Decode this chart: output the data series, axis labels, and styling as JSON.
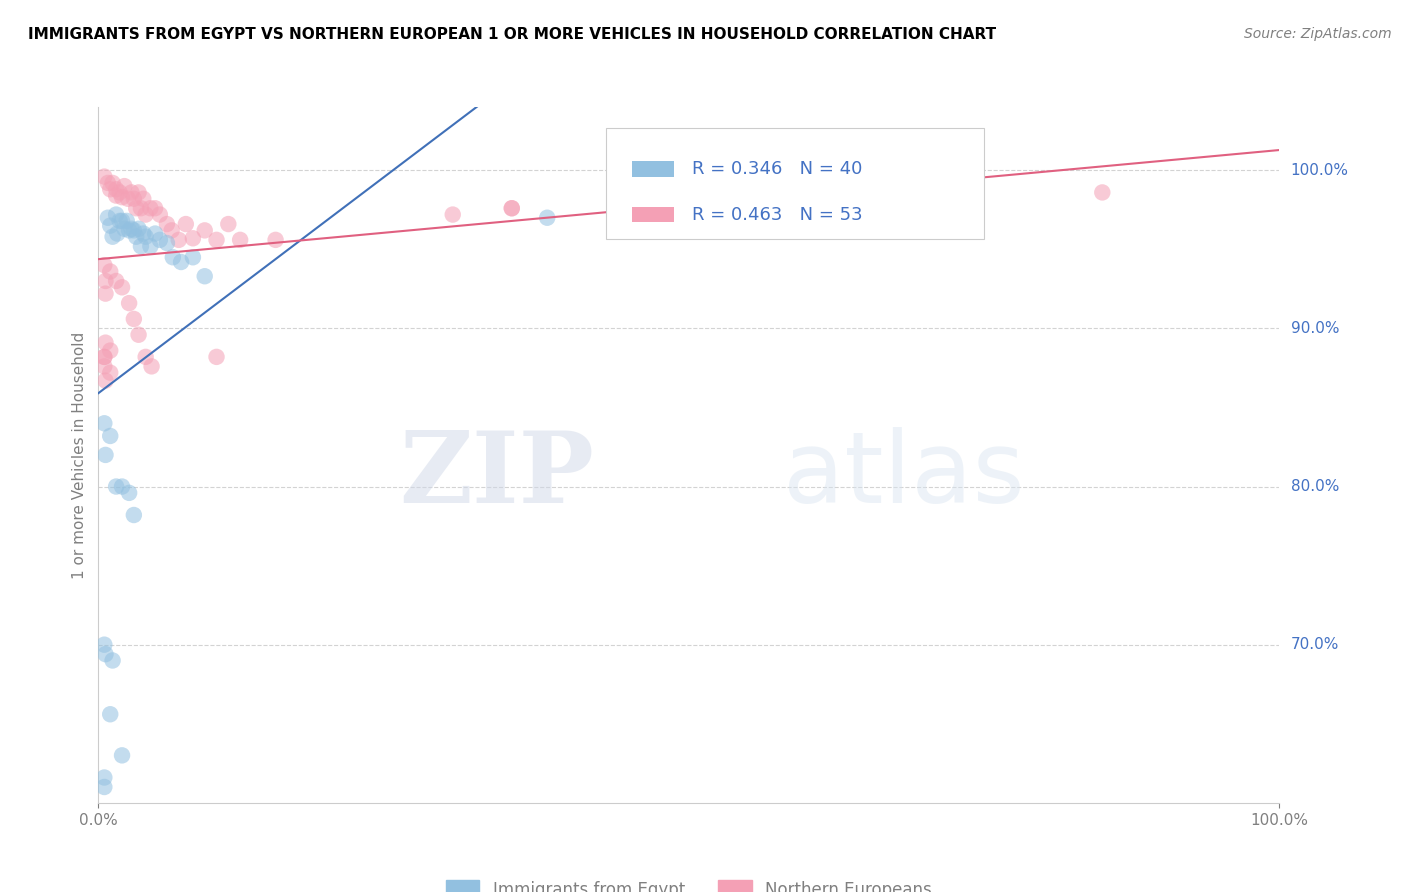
{
  "title": "IMMIGRANTS FROM EGYPT VS NORTHERN EUROPEAN 1 OR MORE VEHICLES IN HOUSEHOLD CORRELATION CHART",
  "source": "Source: ZipAtlas.com",
  "ylabel": "1 or more Vehicles in Household",
  "xlim": [
    0.0,
    1.0
  ],
  "ylim": [
    0.6,
    1.04
  ],
  "yticks": [
    0.7,
    0.8,
    0.9,
    1.0
  ],
  "ytick_labels": [
    "70.0%",
    "80.0%",
    "90.0%",
    "100.0%"
  ],
  "blue_R": 0.346,
  "blue_N": 40,
  "pink_R": 0.463,
  "pink_N": 53,
  "blue_color": "#92c0e0",
  "pink_color": "#f4a0b5",
  "blue_line_color": "#4070b8",
  "pink_line_color": "#e06080",
  "legend_label_blue": "Immigrants from Egypt",
  "legend_label_pink": "Northern Europeans",
  "watermark_zip": "ZIP",
  "watermark_atlas": "atlas",
  "blue_x": [
    0.008,
    0.01,
    0.012,
    0.015,
    0.016,
    0.018,
    0.02,
    0.022,
    0.024,
    0.026,
    0.028,
    0.03,
    0.032,
    0.034,
    0.036,
    0.038,
    0.04,
    0.044,
    0.048,
    0.052,
    0.058,
    0.063,
    0.07,
    0.08,
    0.09,
    0.005,
    0.006,
    0.01,
    0.015,
    0.02,
    0.026,
    0.03,
    0.005,
    0.006,
    0.012,
    0.38,
    0.01,
    0.02,
    0.005,
    0.005
  ],
  "blue_y": [
    0.97,
    0.965,
    0.958,
    0.972,
    0.96,
    0.968,
    0.968,
    0.963,
    0.968,
    0.962,
    0.963,
    0.962,
    0.958,
    0.963,
    0.952,
    0.96,
    0.958,
    0.952,
    0.96,
    0.956,
    0.954,
    0.945,
    0.942,
    0.945,
    0.933,
    0.84,
    0.82,
    0.832,
    0.8,
    0.8,
    0.796,
    0.782,
    0.7,
    0.694,
    0.69,
    0.97,
    0.656,
    0.63,
    0.616,
    0.61
  ],
  "pink_x": [
    0.005,
    0.008,
    0.01,
    0.012,
    0.015,
    0.015,
    0.018,
    0.02,
    0.022,
    0.025,
    0.028,
    0.03,
    0.032,
    0.034,
    0.036,
    0.038,
    0.04,
    0.044,
    0.048,
    0.052,
    0.058,
    0.062,
    0.068,
    0.074,
    0.08,
    0.09,
    0.1,
    0.11,
    0.12,
    0.005,
    0.006,
    0.01,
    0.015,
    0.02,
    0.026,
    0.03,
    0.034,
    0.04,
    0.045,
    0.15,
    0.3,
    0.35,
    0.85,
    0.005,
    0.006,
    0.01,
    0.005,
    0.35,
    0.005,
    0.006,
    0.01,
    0.006,
    0.1
  ],
  "pink_y": [
    0.996,
    0.992,
    0.988,
    0.992,
    0.988,
    0.984,
    0.986,
    0.983,
    0.99,
    0.982,
    0.986,
    0.982,
    0.976,
    0.986,
    0.976,
    0.982,
    0.972,
    0.976,
    0.976,
    0.972,
    0.966,
    0.962,
    0.956,
    0.966,
    0.957,
    0.962,
    0.956,
    0.966,
    0.956,
    0.94,
    0.93,
    0.936,
    0.93,
    0.926,
    0.916,
    0.906,
    0.896,
    0.882,
    0.876,
    0.956,
    0.972,
    0.976,
    0.986,
    0.876,
    0.867,
    0.872,
    0.882,
    0.976,
    0.882,
    0.922,
    0.886,
    0.891,
    0.882
  ]
}
